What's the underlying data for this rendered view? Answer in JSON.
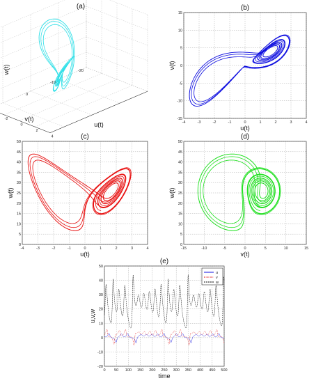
{
  "chart_data": [
    {
      "panel": "(a)",
      "type": "line",
      "projection": "3d",
      "title": "(a)",
      "xlabel": "u(t)",
      "ylabel": "v(t)",
      "zlabel": "w(t)",
      "xticks": [
        "-4",
        "-2",
        "0",
        "2",
        "4"
      ],
      "yticks": [
        "-20",
        "-10",
        "0",
        "10"
      ],
      "zticks": [
        "0",
        "10",
        "20",
        "30",
        "40",
        "50"
      ],
      "xlim": [
        -4,
        4
      ],
      "ylim": [
        -20,
        15
      ],
      "zlim": [
        0,
        50
      ],
      "grid": true,
      "color": "#33e0e8"
    },
    {
      "panel": "(b)",
      "type": "line",
      "title": "(b)",
      "xlabel": "u(t)",
      "ylabel": "v(t)",
      "xticks": [
        "-4",
        "-3",
        "-2",
        "-1",
        "0",
        "1",
        "2",
        "3",
        "4"
      ],
      "yticks": [
        "-15",
        "-10",
        "-5",
        "0",
        "5",
        "10",
        "15"
      ],
      "xlim": [
        -4,
        4
      ],
      "ylim": [
        -15,
        15
      ],
      "grid": true,
      "color": "#1010e0"
    },
    {
      "panel": "(c)",
      "type": "line",
      "title": "(c)",
      "xlabel": "u(t)",
      "ylabel": "w(t)",
      "xticks": [
        "-4",
        "-3",
        "-2",
        "-1",
        "0",
        "1",
        "2",
        "3",
        "4"
      ],
      "yticks": [
        "0",
        "5",
        "10",
        "15",
        "20",
        "25",
        "30",
        "35",
        "40",
        "45",
        "50"
      ],
      "xlim": [
        -4,
        4
      ],
      "ylim": [
        0,
        50
      ],
      "grid": true,
      "color": "#e81010"
    },
    {
      "panel": "(d)",
      "type": "line",
      "title": "(d)",
      "xlabel": "v(t)",
      "ylabel": "w(t)",
      "xticks": [
        "-15",
        "-10",
        "-5",
        "0",
        "5",
        "10",
        "15"
      ],
      "yticks": [
        "0",
        "5",
        "10",
        "15",
        "20",
        "25",
        "30",
        "35",
        "40",
        "45",
        "50"
      ],
      "xlim": [
        -15,
        15
      ],
      "ylim": [
        0,
        50
      ],
      "grid": true,
      "color": "#20e020"
    },
    {
      "panel": "(e)",
      "type": "line",
      "title": "(e)",
      "xlabel": "time",
      "ylabel": "u,v,w",
      "xticks": [
        "0",
        "50",
        "100",
        "150",
        "200",
        "250",
        "300",
        "350",
        "400",
        "450",
        "500"
      ],
      "yticks": [
        "-20",
        "-10",
        "0",
        "10",
        "20",
        "30",
        "40",
        "50"
      ],
      "xlim": [
        0,
        500
      ],
      "ylim": [
        -20,
        50
      ],
      "grid": true,
      "legend": "top-right",
      "series": [
        {
          "name": "u",
          "color": "#1010e0",
          "range": [
            -4,
            4
          ]
        },
        {
          "name": "v",
          "color": "#e01010",
          "range": [
            -11,
            13
          ]
        },
        {
          "name": "w",
          "color": "#000000",
          "range": [
            0,
            46
          ]
        }
      ]
    }
  ]
}
